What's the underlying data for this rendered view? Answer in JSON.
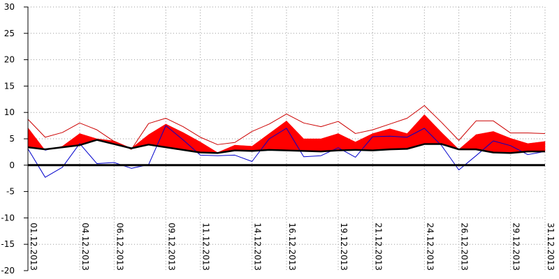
{
  "chart_data": {
    "type": "area",
    "title": "",
    "xlabel": "",
    "ylabel": "",
    "ylim": [
      -20,
      30
    ],
    "yticks": [
      30,
      25,
      20,
      15,
      10,
      5,
      0,
      -5,
      -10,
      -15,
      -20
    ],
    "grid": true,
    "legend": "none",
    "x": [
      "01.12.2013",
      "02.12.2013",
      "03.12.2013",
      "04.12.2013",
      "05.12.2013",
      "06.12.2013",
      "07.12.2013",
      "08.12.2013",
      "09.12.2013",
      "10.12.2013",
      "11.12.2013",
      "12.12.2013",
      "13.12.2013",
      "14.12.2013",
      "15.12.2013",
      "16.12.2013",
      "17.12.2013",
      "18.12.2013",
      "19.12.2013",
      "20.12.2013",
      "21.12.2013",
      "22.12.2013",
      "23.12.2013",
      "24.12.2013",
      "25.12.2013",
      "26.12.2013",
      "27.12.2013",
      "28.12.2013",
      "29.12.2013",
      "30.12.2013",
      "31.12.2013"
    ],
    "x_tick_labels": [
      "01.12.2013",
      "04.12.2013",
      "06.12.2013",
      "09.12.2013",
      "11.12.2013",
      "14.12.2013",
      "16.12.2013",
      "19.12.2013",
      "21.12.2013",
      "24.12.2013",
      "26.12.2013",
      "29.12.2013",
      "31.12.2013"
    ],
    "series": [
      {
        "role": "max",
        "color": "#cc0000",
        "values": [
          8.7,
          5.3,
          6.2,
          8.0,
          6.7,
          4.5,
          3.0,
          7.9,
          8.9,
          7.3,
          5.3,
          3.9,
          4.3,
          6.4,
          7.8,
          9.7,
          8.0,
          7.3,
          8.3,
          6.0,
          6.7,
          7.8,
          8.9,
          11.3,
          8.1,
          4.7,
          8.4,
          8.4,
          6.1,
          6.1,
          6.0
        ]
      },
      {
        "role": "mean",
        "color": "#ff0000",
        "values": [
          7.1,
          2.8,
          3.6,
          6.0,
          5.0,
          4.6,
          3.2,
          5.8,
          7.8,
          6.2,
          4.4,
          2.4,
          3.8,
          3.6,
          6.0,
          8.4,
          5.0,
          5.0,
          6.0,
          4.4,
          6.0,
          6.9,
          6.0,
          9.6,
          6.2,
          3.0,
          5.8,
          6.4,
          5.1,
          4.1,
          4.5
        ]
      },
      {
        "role": "min",
        "color": "#0000cc",
        "values": [
          3.1,
          -2.3,
          -0.4,
          4.1,
          0.3,
          0.5,
          -0.6,
          0.1,
          7.5,
          4.8,
          1.9,
          1.8,
          1.9,
          0.7,
          5.0,
          7.0,
          1.6,
          1.8,
          3.3,
          1.5,
          5.4,
          5.5,
          5.3,
          7.0,
          3.7,
          -0.9,
          1.8,
          4.6,
          3.7,
          2.0,
          2.6
        ]
      },
      {
        "role": "reference",
        "color": "#000000",
        "values": [
          3.4,
          3.0,
          3.4,
          3.8,
          4.8,
          4.0,
          3.2,
          3.9,
          3.4,
          2.9,
          2.4,
          2.3,
          2.8,
          2.7,
          2.9,
          2.8,
          2.7,
          2.6,
          2.8,
          2.9,
          2.8,
          3.0,
          3.1,
          4.0,
          4.0,
          3.0,
          3.0,
          2.4,
          2.3,
          2.6,
          2.6
        ]
      }
    ],
    "zero_line": 0
  }
}
